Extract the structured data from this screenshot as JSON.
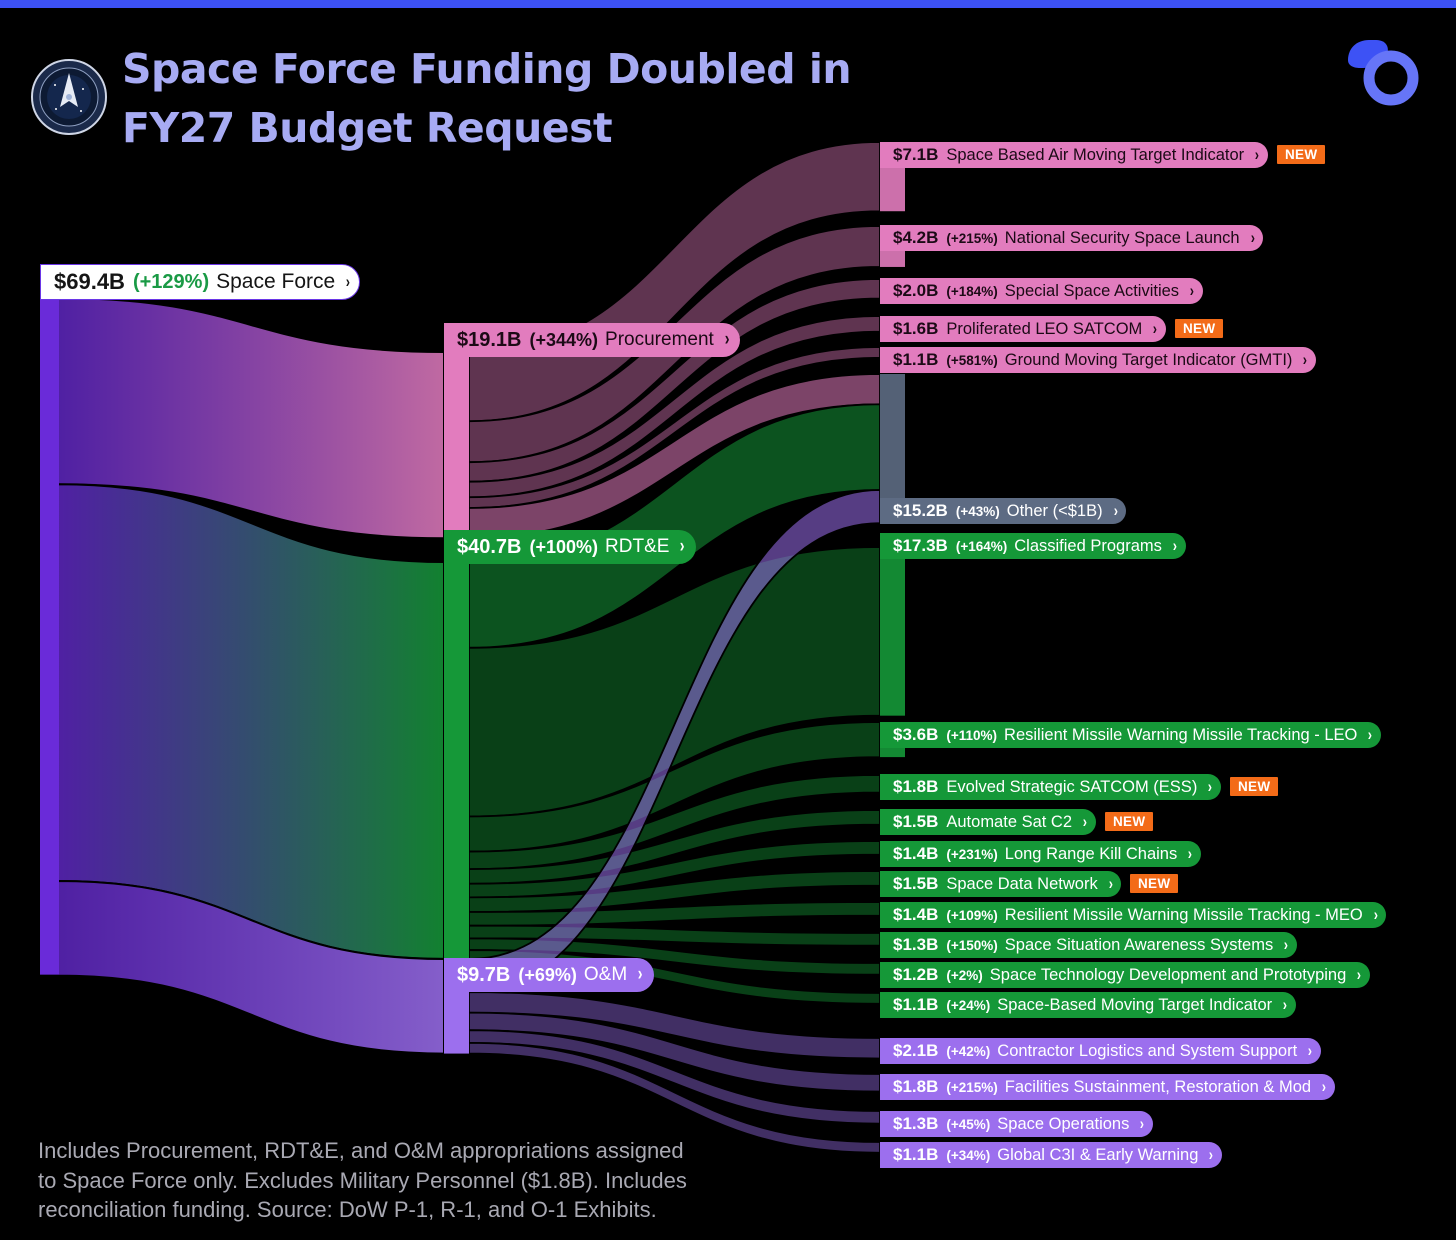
{
  "title_lines": [
    "Space Force Funding Doubled in",
    "FY27 Budget Request"
  ],
  "footnote_lines": [
    "Includes Procurement, RDT&E, and O&M appropriations assigned",
    "to Space Force only. Excludes Military Personnel ($1.8B). Includes",
    "reconciliation funding. Source: DoW P-1, R-1, and O-1 Exhibits."
  ],
  "icons": {
    "seal": "united-states-space-force-seal",
    "logo": "brand-logo",
    "chevron": "chevron-right-icon",
    "chevron_char": "›"
  },
  "badge_text": "NEW",
  "colors": {
    "root": "#6a2bd9",
    "procurement": "#e27cbe",
    "rdte": "#159838",
    "om": "#9c6fee",
    "other": "#5d6b83",
    "badge": "#f36b18",
    "title": "#a7abf3",
    "topbar": "#3d52f5"
  },
  "chart_data": {
    "type": "sankey",
    "title": "Space Force Funding Doubled in FY27 Budget Request",
    "unit": "$B",
    "root": {
      "name": "Space Force",
      "amount": "$69.4B",
      "change": "(+129%)",
      "value": 69.4
    },
    "appropriations": [
      {
        "id": "procurement",
        "name": "Procurement",
        "amount": "$19.1B",
        "change": "(+344%)",
        "value": 19.1,
        "color": "pink"
      },
      {
        "id": "rdte",
        "name": "RDT&E",
        "amount": "$40.7B",
        "change": "(+100%)",
        "value": 40.7,
        "color": "green"
      },
      {
        "id": "om",
        "name": "O&M",
        "amount": "$9.7B",
        "change": "(+69%)",
        "value": 9.7,
        "color": "purple"
      }
    ],
    "programs": [
      {
        "name": "Space Based Air Moving Target Indicator",
        "amount": "$7.1B",
        "change": "",
        "value": 7.1,
        "new": true,
        "color": "pink"
      },
      {
        "name": "National Security Space Launch",
        "amount": "$4.2B",
        "change": "(+215%)",
        "value": 4.2,
        "new": false,
        "color": "pink"
      },
      {
        "name": "Special Space Activities",
        "amount": "$2.0B",
        "change": "(+184%)",
        "value": 2.0,
        "new": false,
        "color": "pink"
      },
      {
        "name": "Proliferated LEO SATCOM",
        "amount": "$1.6B",
        "change": "",
        "value": 1.6,
        "new": true,
        "color": "pink"
      },
      {
        "name": "Ground Moving Target Indicator (GMTI)",
        "amount": "$1.1B",
        "change": "(+581%)",
        "value": 1.1,
        "new": false,
        "color": "pink"
      },
      {
        "name": "Other (<$1B)",
        "amount": "$15.2B",
        "change": "(+43%)",
        "value": 15.2,
        "new": false,
        "color": "gray"
      },
      {
        "name": "Classified Programs",
        "amount": "$17.3B",
        "change": "(+164%)",
        "value": 17.3,
        "new": false,
        "color": "green"
      },
      {
        "name": "Resilient Missile Warning Missile Tracking - LEO",
        "amount": "$3.6B",
        "change": "(+110%)",
        "value": 3.6,
        "new": false,
        "color": "green"
      },
      {
        "name": "Evolved Strategic SATCOM (ESS)",
        "amount": "$1.8B",
        "change": "",
        "value": 1.8,
        "new": true,
        "color": "green"
      },
      {
        "name": "Automate Sat C2",
        "amount": "$1.5B",
        "change": "",
        "value": 1.5,
        "new": true,
        "color": "green"
      },
      {
        "name": "Long Range Kill Chains",
        "amount": "$1.4B",
        "change": "(+231%)",
        "value": 1.4,
        "new": false,
        "color": "green"
      },
      {
        "name": "Space Data Network",
        "amount": "$1.5B",
        "change": "",
        "value": 1.5,
        "new": true,
        "color": "green"
      },
      {
        "name": "Resilient Missile Warning Missile Tracking - MEO",
        "amount": "$1.4B",
        "change": "(+109%)",
        "value": 1.4,
        "new": false,
        "color": "green"
      },
      {
        "name": "Space Situation Awareness Systems",
        "amount": "$1.3B",
        "change": "(+150%)",
        "value": 1.3,
        "new": false,
        "color": "green"
      },
      {
        "name": "Space Technology Development and Prototyping",
        "amount": "$1.2B",
        "change": "(+2%)",
        "value": 1.2,
        "new": false,
        "color": "green"
      },
      {
        "name": "Space-Based Moving Target Indicator",
        "amount": "$1.1B",
        "change": "(+24%)",
        "value": 1.1,
        "new": false,
        "color": "green"
      },
      {
        "name": "Contractor Logistics and System Support",
        "amount": "$2.1B",
        "change": "(+42%)",
        "value": 2.1,
        "new": false,
        "color": "purple"
      },
      {
        "name": "Facilities Sustainment, Restoration & Mod",
        "amount": "$1.8B",
        "change": "(+215%)",
        "value": 1.8,
        "new": false,
        "color": "purple"
      },
      {
        "name": "Space Operations",
        "amount": "$1.3B",
        "change": "(+45%)",
        "value": 1.3,
        "new": false,
        "color": "purple"
      },
      {
        "name": "Global C3I & Early Warning",
        "amount": "$1.1B",
        "change": "(+34%)",
        "value": 1.1,
        "new": false,
        "color": "purple"
      }
    ],
    "links": [
      {
        "source": "Space Force",
        "target": "Procurement",
        "value": 19.1
      },
      {
        "source": "Space Force",
        "target": "RDT&E",
        "value": 40.7
      },
      {
        "source": "Space Force",
        "target": "O&M",
        "value": 9.7
      },
      {
        "source": "Procurement",
        "target": "Space Based Air Moving Target Indicator",
        "value": 7.1
      },
      {
        "source": "Procurement",
        "target": "National Security Space Launch",
        "value": 4.2
      },
      {
        "source": "Procurement",
        "target": "Special Space Activities",
        "value": 2.0
      },
      {
        "source": "Procurement",
        "target": "Proliferated LEO SATCOM",
        "value": 1.6
      },
      {
        "source": "Procurement",
        "target": "Ground Moving Target Indicator (GMTI)",
        "value": 1.1
      },
      {
        "source": "Procurement",
        "target": "Other (<$1B)",
        "value": 3.1
      },
      {
        "source": "RDT&E",
        "target": "Other (<$1B)",
        "value": 8.8
      },
      {
        "source": "O&M",
        "target": "Other (<$1B)",
        "value": 3.4
      },
      {
        "source": "RDT&E",
        "target": "Classified Programs",
        "value": 17.3
      },
      {
        "source": "RDT&E",
        "target": "Resilient Missile Warning Missile Tracking - LEO",
        "value": 3.6
      },
      {
        "source": "RDT&E",
        "target": "Evolved Strategic SATCOM (ESS)",
        "value": 1.8
      },
      {
        "source": "RDT&E",
        "target": "Automate Sat C2",
        "value": 1.5
      },
      {
        "source": "RDT&E",
        "target": "Long Range Kill Chains",
        "value": 1.4
      },
      {
        "source": "RDT&E",
        "target": "Space Data Network",
        "value": 1.5
      },
      {
        "source": "RDT&E",
        "target": "Resilient Missile Warning Missile Tracking - MEO",
        "value": 1.4
      },
      {
        "source": "RDT&E",
        "target": "Space Situation Awareness Systems",
        "value": 1.3
      },
      {
        "source": "RDT&E",
        "target": "Space Technology Development and Prototyping",
        "value": 1.2
      },
      {
        "source": "RDT&E",
        "target": "Space-Based Moving Target Indicator",
        "value": 1.1
      },
      {
        "source": "O&M",
        "target": "Contractor Logistics and System Support",
        "value": 2.1
      },
      {
        "source": "O&M",
        "target": "Facilities Sustainment, Restoration & Mod",
        "value": 1.8
      },
      {
        "source": "O&M",
        "target": "Space Operations",
        "value": 1.3
      },
      {
        "source": "O&M",
        "target": "Global C3I & Early Warning",
        "value": 1.1
      }
    ]
  }
}
